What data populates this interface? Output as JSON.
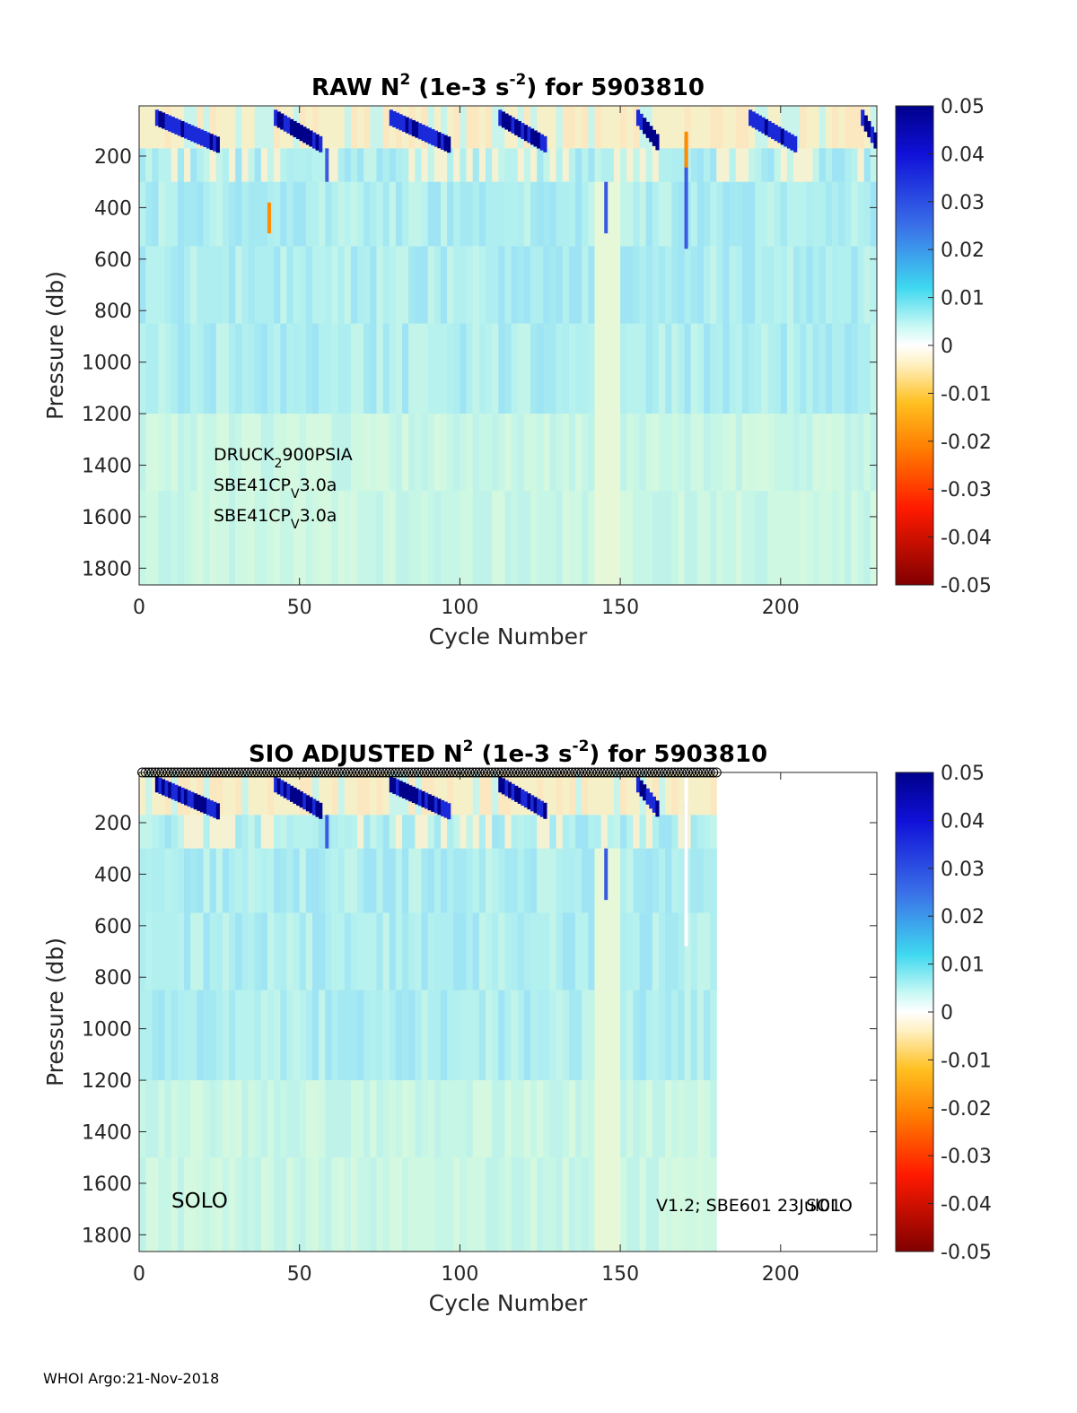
{
  "chart_data": [
    {
      "type": "heatmap",
      "title_prefix": "RAW N",
      "title_sup1": "2",
      "title_mid": " (1e-3 s",
      "title_sup2": "-2",
      "title_suffix": ") for 5903810",
      "xlabel": "Cycle Number",
      "ylabel": "Pressure (db)",
      "xlim": [
        0,
        230
      ],
      "ylim": [
        1865,
        5
      ],
      "xticks": [
        0,
        50,
        100,
        150,
        200
      ],
      "yticks": [
        200,
        400,
        600,
        800,
        1000,
        1200,
        1400,
        1600,
        1800
      ],
      "data_xmax": 230,
      "colorbar": {
        "ticks": [
          "0.05",
          "0.04",
          "0.03",
          "0.02",
          "0.01",
          "0",
          "-0.01",
          "-0.02",
          "-0.03",
          "-0.04",
          "-0.05"
        ],
        "range": [
          -0.05,
          0.05
        ]
      },
      "annotations": [
        {
          "base": "DRUCK",
          "sub": "2",
          "rest": "900PSIA"
        },
        {
          "base": "SBE41CP",
          "sub": "V",
          "rest": "3.0a"
        },
        {
          "base": "SBE41CP",
          "sub": "V",
          "rest": "3.0a"
        }
      ]
    },
    {
      "type": "heatmap",
      "title_prefix": "SIO  ADJUSTED N",
      "title_sup1": "2",
      "title_mid": " (1e-3 s",
      "title_sup2": "-2",
      "title_suffix": ") for 5903810",
      "xlabel": "Cycle Number",
      "ylabel": "Pressure (db)",
      "xlim": [
        0,
        230
      ],
      "ylim": [
        1865,
        5
      ],
      "xticks": [
        0,
        50,
        100,
        150,
        200
      ],
      "yticks": [
        200,
        400,
        600,
        800,
        1000,
        1200,
        1400,
        1600,
        1800
      ],
      "data_xmax": 180,
      "marker_cycles_max": 180,
      "colorbar": {
        "ticks": [
          "0.05",
          "0.04",
          "0.03",
          "0.02",
          "0.01",
          "0",
          "-0.01",
          "-0.02",
          "-0.03",
          "-0.04",
          "-0.05"
        ],
        "range": [
          -0.05,
          0.05
        ]
      },
      "label_left": "SOLO",
      "label_right_a": "V1.2; SBE601 23Jul01",
      "label_right_b": "SOLO"
    }
  ],
  "footer": "WHOI Argo:21-Nov-2018",
  "colors": {
    "deep_blue": "#00008b",
    "light_cyan": "#aaf0f0",
    "neutral": "#fff5d6",
    "orange": "#ff8c00",
    "dark_red": "#800000"
  }
}
